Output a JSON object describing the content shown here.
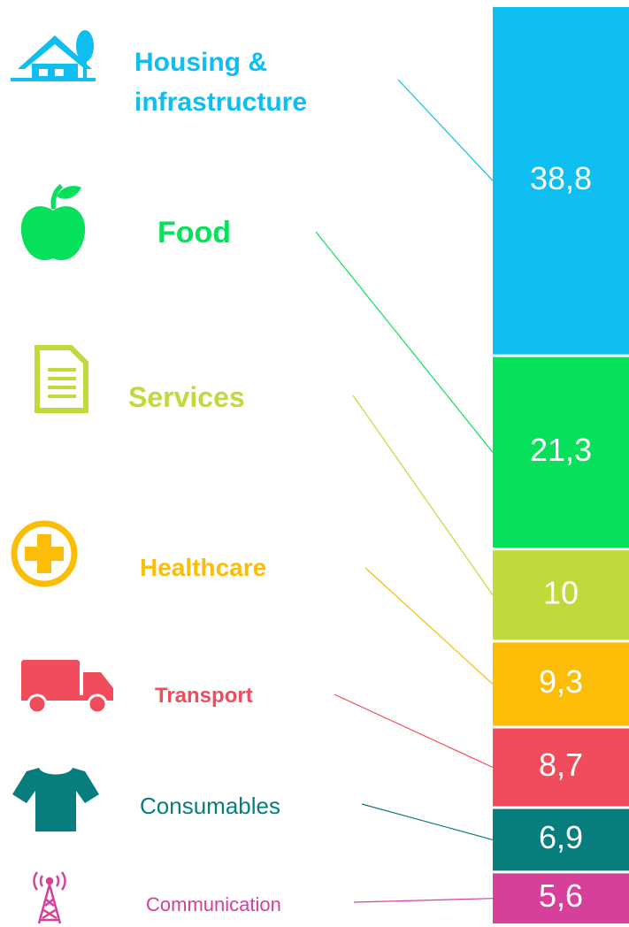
{
  "chart_data": {
    "type": "stacked-bar",
    "categories": [
      "Housing & infrastructure",
      "Food",
      "Services",
      "Healthcare",
      "Transport",
      "Consumables",
      "Communication"
    ],
    "values": [
      38.8,
      21.3,
      10,
      9.3,
      8.7,
      6.9,
      5.6
    ],
    "value_labels": [
      "38,8",
      "21,3",
      "10",
      "9,3",
      "8,7",
      "6,9",
      "5,6"
    ],
    "colors": [
      "#0ebef0",
      "#07e05a",
      "#c2d93c",
      "#fbbd08",
      "#f04c5c",
      "#087d7d",
      "#d6409a"
    ]
  }
}
